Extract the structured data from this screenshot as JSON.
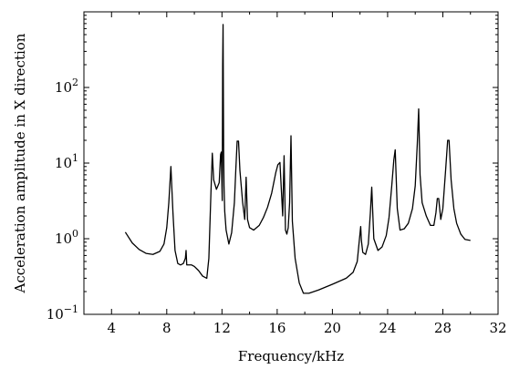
{
  "chart_data": {
    "type": "line",
    "title": "",
    "xlabel": "Frequency/kHz",
    "ylabel": "Acceleration amplitude in X direction",
    "xlim": [
      2,
      32
    ],
    "ylim": [
      0.1,
      1000
    ],
    "yscale": "log",
    "grid": false,
    "x_ticks": [
      4,
      8,
      12,
      16,
      20,
      24,
      28,
      32
    ],
    "x_tick_labels": [
      "4",
      "8",
      "12",
      "16",
      "20",
      "24",
      "28",
      "32"
    ],
    "y_ticks": [
      0.1,
      1,
      10,
      100
    ],
    "y_tick_labels": [
      {
        "base": "10",
        "exp": "−1"
      },
      {
        "base": "10",
        "exp": "0"
      },
      {
        "base": "10",
        "exp": "1"
      },
      {
        "base": "10",
        "exp": "2"
      }
    ],
    "series": [
      {
        "x": [
          5.0,
          5.5,
          6.0,
          6.5,
          7.0,
          7.5,
          7.8,
          8.0,
          8.15,
          8.3,
          8.45,
          8.6,
          8.8,
          9.0,
          9.2,
          9.35,
          9.4,
          9.45,
          9.55,
          9.8,
          10.0,
          10.3,
          10.6,
          10.9,
          11.05,
          11.2,
          11.3,
          11.4,
          11.6,
          11.8,
          11.9,
          11.95,
          12.02,
          12.05,
          12.08,
          12.12,
          12.15,
          12.2,
          12.3,
          12.5,
          12.7,
          12.9,
          13.0,
          13.1,
          13.2,
          13.3,
          13.5,
          13.65,
          13.75,
          13.85,
          14.0,
          14.3,
          14.7,
          15.0,
          15.3,
          15.6,
          15.9,
          16.05,
          16.2,
          16.3,
          16.4,
          16.5,
          16.6,
          16.7,
          16.8,
          16.9,
          17.0,
          17.1,
          17.3,
          17.6,
          17.9,
          18.3,
          19.0,
          20.0,
          21.0,
          21.5,
          21.8,
          21.95,
          22.05,
          22.1,
          22.2,
          22.4,
          22.6,
          22.75,
          22.85,
          23.0,
          23.3,
          23.6,
          23.9,
          24.1,
          24.3,
          24.45,
          24.55,
          24.7,
          24.9,
          25.2,
          25.5,
          25.8,
          26.0,
          26.15,
          26.25,
          26.35,
          26.5,
          26.8,
          27.1,
          27.35,
          27.5,
          27.6,
          27.7,
          27.85,
          28.0,
          28.2,
          28.35,
          28.45,
          28.6,
          28.8,
          29.0,
          29.3,
          29.6,
          30.0
        ],
        "y": [
          1.22,
          0.88,
          0.72,
          0.64,
          0.62,
          0.68,
          0.85,
          1.4,
          3.0,
          9.0,
          2.2,
          0.7,
          0.47,
          0.45,
          0.47,
          0.55,
          0.7,
          0.45,
          0.45,
          0.45,
          0.43,
          0.38,
          0.32,
          0.3,
          0.55,
          4.0,
          13.5,
          6.0,
          4.5,
          5.5,
          13.0,
          14.0,
          3.2,
          200.0,
          680.0,
          15.0,
          5.0,
          2.3,
          1.3,
          0.85,
          1.2,
          3.0,
          8.0,
          19.5,
          19.5,
          8.0,
          3.0,
          1.8,
          6.5,
          1.8,
          1.4,
          1.3,
          1.5,
          1.9,
          2.6,
          4.0,
          7.5,
          9.5,
          10.2,
          4.5,
          2.0,
          12.5,
          1.3,
          1.15,
          1.4,
          3.0,
          23.0,
          1.7,
          0.55,
          0.26,
          0.19,
          0.19,
          0.21,
          0.25,
          0.3,
          0.36,
          0.5,
          0.95,
          1.45,
          0.95,
          0.66,
          0.62,
          0.85,
          2.2,
          4.8,
          1.0,
          0.7,
          0.78,
          1.1,
          1.9,
          5.0,
          11.0,
          15.0,
          2.5,
          1.3,
          1.35,
          1.6,
          2.5,
          5.0,
          18.0,
          52.0,
          7.0,
          3.0,
          2.0,
          1.5,
          1.5,
          2.2,
          3.4,
          3.4,
          1.8,
          2.5,
          8.0,
          20.0,
          20.0,
          6.0,
          2.5,
          1.6,
          1.15,
          0.98,
          0.95
        ]
      }
    ]
  }
}
